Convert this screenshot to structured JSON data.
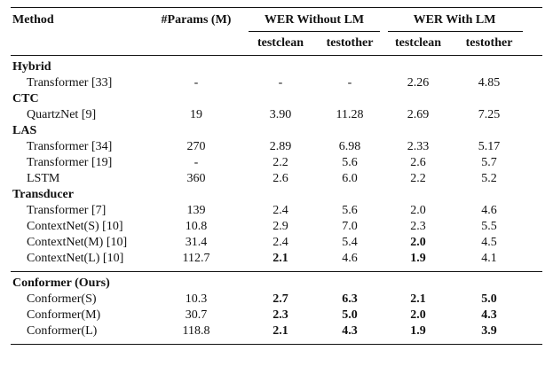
{
  "headers": {
    "method": "Method",
    "params": "#Params (M)",
    "wer_without_lm": "WER Without LM",
    "wer_with_lm": "WER With LM",
    "testclean": "testclean",
    "testother": "testother"
  },
  "rows": [
    {
      "type": "section",
      "label": "Hybrid"
    },
    {
      "type": "data",
      "method": "Transformer [33]",
      "params": "-",
      "cells": [
        "-",
        "-",
        "2.26",
        "4.85"
      ],
      "bold": [
        false,
        false,
        false,
        false
      ]
    },
    {
      "type": "section",
      "label": "CTC"
    },
    {
      "type": "data",
      "method": "QuartzNet [9]",
      "params": "19",
      "cells": [
        "3.90",
        "11.28",
        "2.69",
        "7.25"
      ],
      "bold": [
        false,
        false,
        false,
        false
      ]
    },
    {
      "type": "section",
      "label": "LAS"
    },
    {
      "type": "data",
      "method": "Transformer [34]",
      "params": "270",
      "cells": [
        "2.89",
        "6.98",
        "2.33",
        "5.17"
      ],
      "bold": [
        false,
        false,
        false,
        false
      ]
    },
    {
      "type": "data",
      "method": "Transformer [19]",
      "params": "-",
      "cells": [
        "2.2",
        "5.6",
        "2.6",
        "5.7"
      ],
      "bold": [
        false,
        false,
        false,
        false
      ]
    },
    {
      "type": "data",
      "method": "LSTM",
      "params": "360",
      "cells": [
        "2.6",
        "6.0",
        "2.2",
        "5.2"
      ],
      "bold": [
        false,
        false,
        false,
        false
      ]
    },
    {
      "type": "section",
      "label": "Transducer"
    },
    {
      "type": "data",
      "method": "Transformer [7]",
      "params": "139",
      "cells": [
        "2.4",
        "5.6",
        "2.0",
        "4.6"
      ],
      "bold": [
        false,
        false,
        false,
        false
      ]
    },
    {
      "type": "data",
      "method": "ContextNet(S) [10]",
      "params": "10.8",
      "cells": [
        "2.9",
        "7.0",
        "2.3",
        "5.5"
      ],
      "bold": [
        false,
        false,
        false,
        false
      ]
    },
    {
      "type": "data",
      "method": "ContextNet(M) [10]",
      "params": "31.4",
      "cells": [
        "2.4",
        "5.4",
        "2.0",
        "4.5"
      ],
      "bold": [
        false,
        false,
        true,
        false
      ]
    },
    {
      "type": "data",
      "method": "ContextNet(L) [10]",
      "params": "112.7",
      "cells": [
        "2.1",
        "4.6",
        "1.9",
        "4.1"
      ],
      "bold": [
        true,
        false,
        true,
        false
      ]
    },
    {
      "type": "section",
      "label": "Conformer (Ours)"
    },
    {
      "type": "data",
      "method": "Conformer(S)",
      "params": "10.3",
      "cells": [
        "2.7",
        "6.3",
        "2.1",
        "5.0"
      ],
      "bold": [
        true,
        true,
        true,
        true
      ]
    },
    {
      "type": "data",
      "method": "Conformer(M)",
      "params": "30.7",
      "cells": [
        "2.3",
        "5.0",
        "2.0",
        "4.3"
      ],
      "bold": [
        true,
        true,
        true,
        true
      ]
    },
    {
      "type": "data",
      "method": "Conformer(L)",
      "params": "118.8",
      "cells": [
        "2.1",
        "4.3",
        "1.9",
        "3.9"
      ],
      "bold": [
        true,
        true,
        true,
        true
      ]
    }
  ]
}
